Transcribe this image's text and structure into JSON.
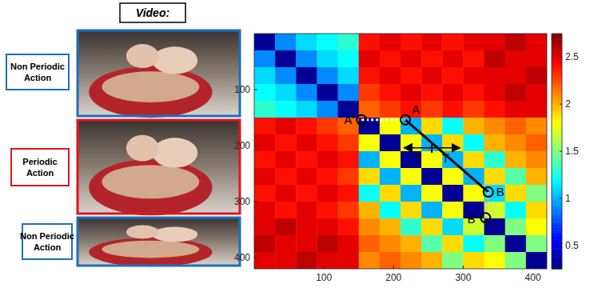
{
  "figure": {
    "video_label": "Video:",
    "clips": [
      {
        "label": "Non Periodic Action",
        "color": "#1f6fbf"
      },
      {
        "label": "Periodic Action",
        "color": "#e0161e"
      },
      {
        "label": "Non Periodic Action",
        "color": "#1f6fbf"
      }
    ]
  },
  "chart_data": {
    "type": "heatmap",
    "xlim": [
      0,
      420
    ],
    "ylim": [
      0,
      420
    ],
    "xticks": [
      100,
      200,
      300,
      400
    ],
    "yticks": [
      100,
      200,
      300,
      400
    ],
    "cells": [
      [
        0.3,
        0.9,
        1.1,
        1.2,
        1.3,
        2.4,
        2.5,
        2.4,
        2.5,
        2.4,
        2.5,
        2.5,
        2.6,
        2.5
      ],
      [
        0.9,
        0.3,
        0.9,
        1.1,
        1.2,
        2.5,
        2.4,
        2.5,
        2.4,
        2.5,
        2.4,
        2.6,
        2.5,
        2.5
      ],
      [
        1.1,
        0.9,
        0.3,
        0.9,
        1.1,
        2.4,
        2.5,
        2.4,
        2.5,
        2.4,
        2.5,
        2.5,
        2.5,
        2.6
      ],
      [
        1.2,
        1.1,
        0.9,
        0.3,
        0.9,
        2.3,
        2.4,
        2.5,
        2.4,
        2.5,
        2.4,
        2.5,
        2.6,
        2.5
      ],
      [
        1.3,
        1.2,
        1.1,
        0.9,
        0.3,
        2.2,
        2.3,
        2.4,
        2.3,
        2.4,
        2.3,
        2.4,
        2.5,
        2.5
      ],
      [
        2.4,
        2.5,
        2.4,
        2.3,
        2.2,
        0.3,
        1.8,
        1.0,
        1.9,
        1.2,
        2.0,
        2.1,
        2.2,
        2.1
      ],
      [
        2.5,
        2.4,
        2.5,
        2.4,
        2.3,
        1.8,
        0.3,
        1.8,
        1.0,
        1.9,
        1.2,
        2.0,
        2.1,
        2.2
      ],
      [
        2.4,
        2.5,
        2.4,
        2.5,
        2.4,
        1.0,
        1.8,
        0.3,
        1.8,
        1.0,
        1.9,
        1.3,
        2.0,
        2.1
      ],
      [
        2.5,
        2.4,
        2.5,
        2.4,
        2.3,
        1.9,
        1.0,
        1.8,
        0.3,
        1.8,
        1.0,
        1.9,
        1.4,
        2.0
      ],
      [
        2.4,
        2.5,
        2.4,
        2.5,
        2.4,
        1.2,
        1.9,
        1.0,
        1.8,
        0.3,
        1.8,
        1.1,
        1.9,
        1.5
      ],
      [
        2.5,
        2.4,
        2.5,
        2.4,
        2.3,
        2.0,
        1.2,
        1.9,
        1.0,
        1.8,
        0.3,
        1.7,
        1.2,
        1.9
      ],
      [
        2.5,
        2.6,
        2.5,
        2.5,
        2.4,
        2.1,
        2.0,
        1.3,
        1.9,
        1.1,
        1.7,
        0.3,
        1.5,
        1.8
      ],
      [
        2.6,
        2.5,
        2.5,
        2.6,
        2.5,
        2.2,
        2.1,
        2.0,
        1.4,
        1.9,
        1.2,
        1.5,
        0.3,
        1.5
      ],
      [
        2.5,
        2.5,
        2.6,
        2.5,
        2.5,
        2.1,
        2.2,
        2.1,
        2.0,
        1.5,
        1.9,
        1.8,
        1.5,
        0.3
      ]
    ],
    "colorbar": {
      "range": [
        0.25,
        2.75
      ],
      "ticks": [
        0.5,
        1,
        1.5,
        2,
        2.5
      ]
    },
    "annotations": [
      {
        "label": "A",
        "x": 217,
        "y": 154
      },
      {
        "label": "A'",
        "x": 154,
        "y": 154
      },
      {
        "label": "B",
        "x": 336,
        "y": 283
      },
      {
        "label": "B'",
        "x": 332,
        "y": 329
      }
    ],
    "period_marks": [
      {
        "label": "T",
        "x1": 255,
        "x2": 215,
        "y": 204
      },
      {
        "label": "T",
        "x1": 255,
        "x2": 295,
        "y": 204
      }
    ]
  }
}
